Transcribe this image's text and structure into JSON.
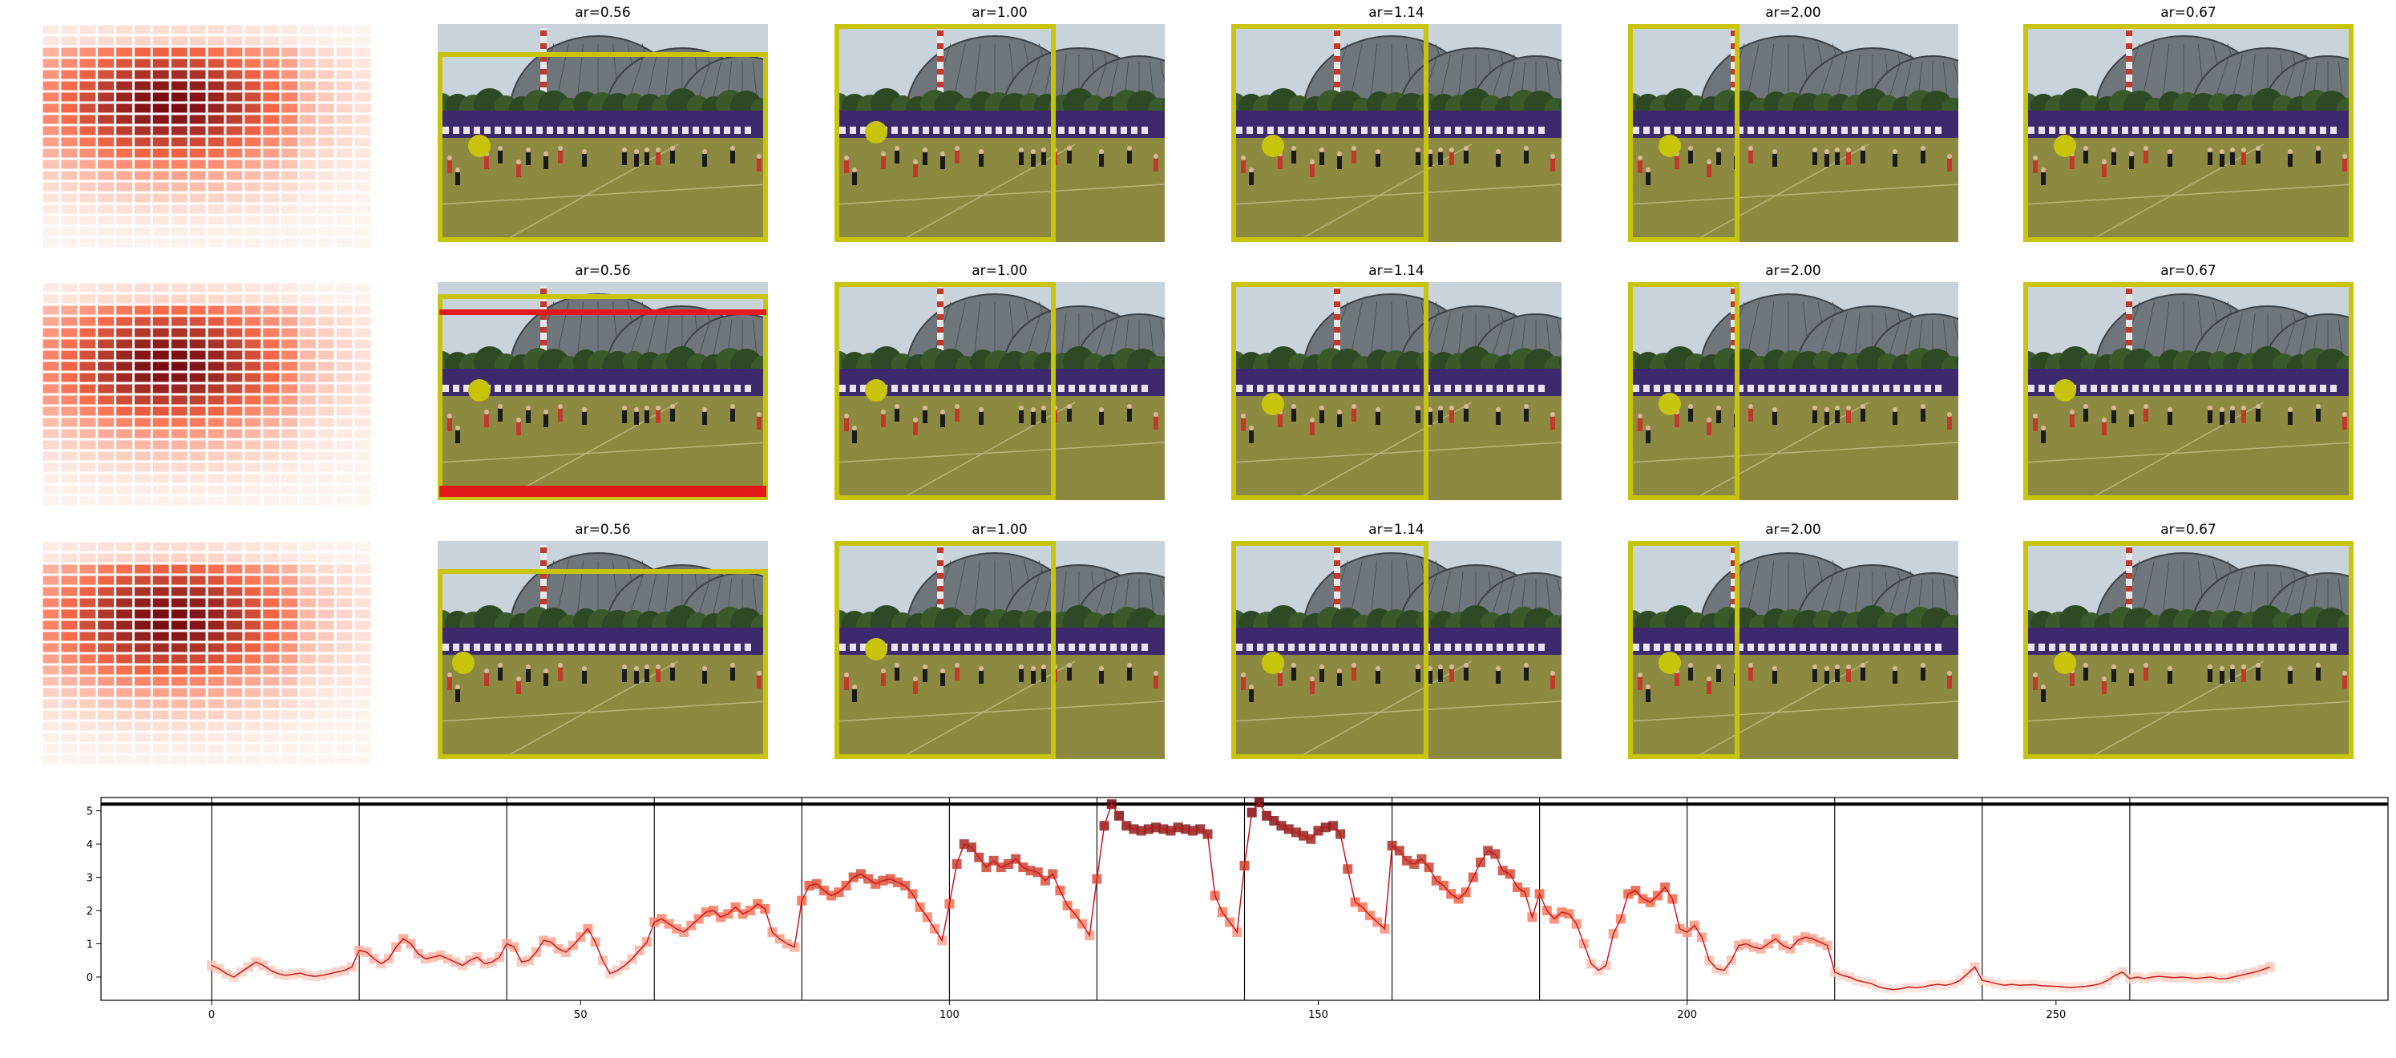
{
  "figure": {
    "grid_rows": 3,
    "colors": {
      "crop_box": "#c8c40a",
      "point": "#c8c40a",
      "highlight_box": "#e31a1c",
      "heat_low": "#fff5f0",
      "heat_high": "#67000d",
      "line": "#cb181d"
    },
    "rows": [
      {
        "panels": [
          {
            "title": "ar=0.56",
            "crop": "wide-shifted"
          },
          {
            "title": "ar=1.00",
            "crop": "left-square"
          },
          {
            "title": "ar=1.14",
            "crop": "left-wide"
          },
          {
            "title": "ar=2.00",
            "crop": "left-narrow"
          },
          {
            "title": "ar=0.67",
            "crop": "full"
          }
        ]
      },
      {
        "panels": [
          {
            "title": "ar=0.56",
            "crop": "wide-shifted-red"
          },
          {
            "title": "ar=1.00",
            "crop": "left-square"
          },
          {
            "title": "ar=1.14",
            "crop": "left-wide"
          },
          {
            "title": "ar=2.00",
            "crop": "left-narrow"
          },
          {
            "title": "ar=0.67",
            "crop": "full"
          }
        ]
      },
      {
        "panels": [
          {
            "title": "ar=0.56",
            "crop": "wide-shifted"
          },
          {
            "title": "ar=1.00",
            "crop": "left-square"
          },
          {
            "title": "ar=1.14",
            "crop": "left-wide"
          },
          {
            "title": "ar=2.00",
            "crop": "left-narrow"
          },
          {
            "title": "ar=0.67",
            "crop": "full"
          }
        ]
      }
    ]
  },
  "chart_data": {
    "type": "line",
    "marker": "square",
    "xlim": [
      -15,
      295
    ],
    "ylim": [
      -0.7,
      5.4
    ],
    "xticks": [
      0,
      50,
      100,
      150,
      200,
      250
    ],
    "yticks": [
      0,
      1,
      2,
      3,
      4,
      5
    ],
    "hline": 5.2,
    "vlines": [
      0,
      20,
      40,
      60,
      80,
      100,
      120,
      140,
      160,
      180,
      200,
      220,
      240,
      260
    ],
    "grid": false,
    "xlabel": "",
    "ylabel": "",
    "title": "",
    "x_start": 0,
    "values": [
      0.35,
      0.25,
      0.1,
      0.0,
      0.15,
      0.3,
      0.45,
      0.35,
      0.2,
      0.1,
      0.05,
      0.08,
      0.12,
      0.05,
      0.02,
      0.05,
      0.1,
      0.15,
      0.2,
      0.3,
      0.8,
      0.75,
      0.55,
      0.4,
      0.55,
      0.9,
      1.15,
      1.0,
      0.7,
      0.55,
      0.6,
      0.65,
      0.55,
      0.45,
      0.35,
      0.5,
      0.6,
      0.4,
      0.45,
      0.6,
      1.0,
      0.9,
      0.45,
      0.5,
      0.75,
      1.1,
      1.05,
      0.85,
      0.75,
      0.95,
      1.2,
      1.45,
      1.05,
      0.5,
      0.1,
      0.2,
      0.35,
      0.55,
      0.8,
      1.05,
      1.65,
      1.75,
      1.6,
      1.45,
      1.35,
      1.55,
      1.75,
      1.95,
      2.0,
      1.8,
      1.9,
      2.1,
      1.9,
      2.0,
      2.2,
      2.05,
      1.35,
      1.15,
      1.0,
      0.9,
      2.3,
      2.75,
      2.8,
      2.6,
      2.45,
      2.55,
      2.75,
      3.0,
      3.1,
      2.95,
      2.8,
      2.9,
      2.95,
      2.85,
      2.75,
      2.5,
      2.1,
      1.8,
      1.45,
      1.1,
      2.2,
      3.4,
      4.0,
      3.9,
      3.6,
      3.3,
      3.5,
      3.3,
      3.4,
      3.55,
      3.3,
      3.2,
      3.15,
      2.9,
      3.1,
      2.6,
      2.15,
      1.9,
      1.6,
      1.25,
      2.95,
      4.55,
      5.2,
      4.85,
      4.55,
      4.45,
      4.4,
      4.45,
      4.5,
      4.45,
      4.4,
      4.5,
      4.45,
      4.4,
      4.45,
      4.3,
      2.45,
      1.95,
      1.65,
      1.35,
      3.35,
      4.95,
      5.25,
      4.85,
      4.7,
      4.55,
      4.45,
      4.35,
      4.25,
      4.15,
      4.4,
      4.5,
      4.55,
      4.3,
      3.25,
      2.25,
      2.1,
      1.85,
      1.65,
      1.45,
      3.95,
      3.8,
      3.5,
      3.4,
      3.55,
      3.3,
      2.9,
      2.75,
      2.5,
      2.35,
      2.55,
      3.0,
      3.45,
      3.8,
      3.7,
      3.2,
      3.1,
      2.7,
      2.55,
      1.8,
      2.5,
      2.0,
      1.75,
      1.95,
      1.9,
      1.6,
      1.0,
      0.4,
      0.2,
      0.35,
      1.3,
      1.75,
      2.5,
      2.6,
      2.35,
      2.25,
      2.45,
      2.7,
      2.35,
      1.45,
      1.35,
      1.55,
      1.2,
      0.5,
      0.25,
      0.2,
      0.5,
      0.95,
      1.0,
      0.9,
      0.85,
      1.0,
      1.15,
      0.95,
      0.85,
      1.1,
      1.2,
      1.15,
      1.05,
      0.95,
      0.15,
      0.05,
      0.0,
      -0.1,
      -0.15,
      -0.2,
      -0.3,
      -0.35,
      -0.38,
      -0.35,
      -0.3,
      -0.32,
      -0.3,
      -0.25,
      -0.22,
      -0.25,
      -0.2,
      -0.1,
      0.1,
      0.3,
      -0.1,
      -0.15,
      -0.2,
      -0.25,
      -0.22,
      -0.25,
      -0.24,
      -0.23,
      -0.26,
      -0.27,
      -0.28,
      -0.3,
      -0.32,
      -0.3,
      -0.28,
      -0.25,
      -0.2,
      -0.1,
      0.05,
      0.15,
      -0.05,
      0.0,
      -0.05,
      0.0,
      0.02,
      0.0,
      -0.02,
      0.0,
      -0.02,
      -0.05,
      -0.02,
      0.0,
      -0.05,
      -0.05,
      0.0,
      0.05,
      0.1,
      0.15,
      0.22,
      0.3
    ]
  }
}
